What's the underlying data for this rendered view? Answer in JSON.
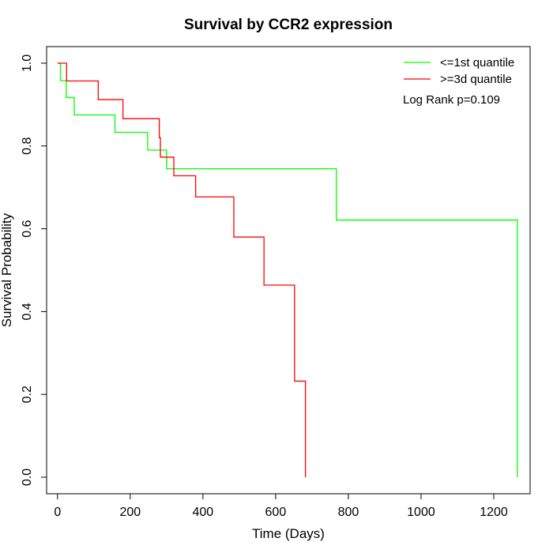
{
  "chart_data": {
    "type": "line",
    "title": "Survival by CCR2 expression",
    "xlabel": "Time (Days)",
    "ylabel": "Survival Probability",
    "xlim": [
      -30,
      1300
    ],
    "ylim": [
      -0.04,
      1.04
    ],
    "x_ticks": [
      0,
      200,
      400,
      600,
      800,
      1000,
      1200
    ],
    "y_ticks": [
      0.0,
      0.2,
      0.4,
      0.6,
      0.8,
      1.0
    ],
    "x_tick_labels": [
      "0",
      "200",
      "400",
      "600",
      "800",
      "1000",
      "1200"
    ],
    "y_tick_labels": [
      "0.0",
      "0.2",
      "0.4",
      "0.6",
      "0.8",
      "1.0"
    ],
    "grid": false,
    "legend_position": "top-right",
    "annotation": "Log Rank p=0.109",
    "series": [
      {
        "name": "<=1st quantile",
        "color": "#00ff00",
        "steps": [
          [
            0,
            1.0
          ],
          [
            8,
            0.958
          ],
          [
            24,
            0.917
          ],
          [
            46,
            0.875
          ],
          [
            158,
            0.833
          ],
          [
            248,
            0.79
          ],
          [
            300,
            0.745
          ],
          [
            767,
            0.621
          ],
          [
            1265,
            0.0
          ]
        ],
        "end_x": 1265
      },
      {
        "name": ">=3d quantile",
        "color": "#ff0000",
        "steps": [
          [
            0,
            1.0
          ],
          [
            25,
            0.957
          ],
          [
            112,
            0.912
          ],
          [
            180,
            0.866
          ],
          [
            280,
            0.82
          ],
          [
            283,
            0.773
          ],
          [
            320,
            0.728
          ],
          [
            380,
            0.677
          ],
          [
            485,
            0.58
          ],
          [
            568,
            0.464
          ],
          [
            652,
            0.232
          ],
          [
            682,
            0.0
          ]
        ],
        "end_x": 682
      }
    ]
  }
}
